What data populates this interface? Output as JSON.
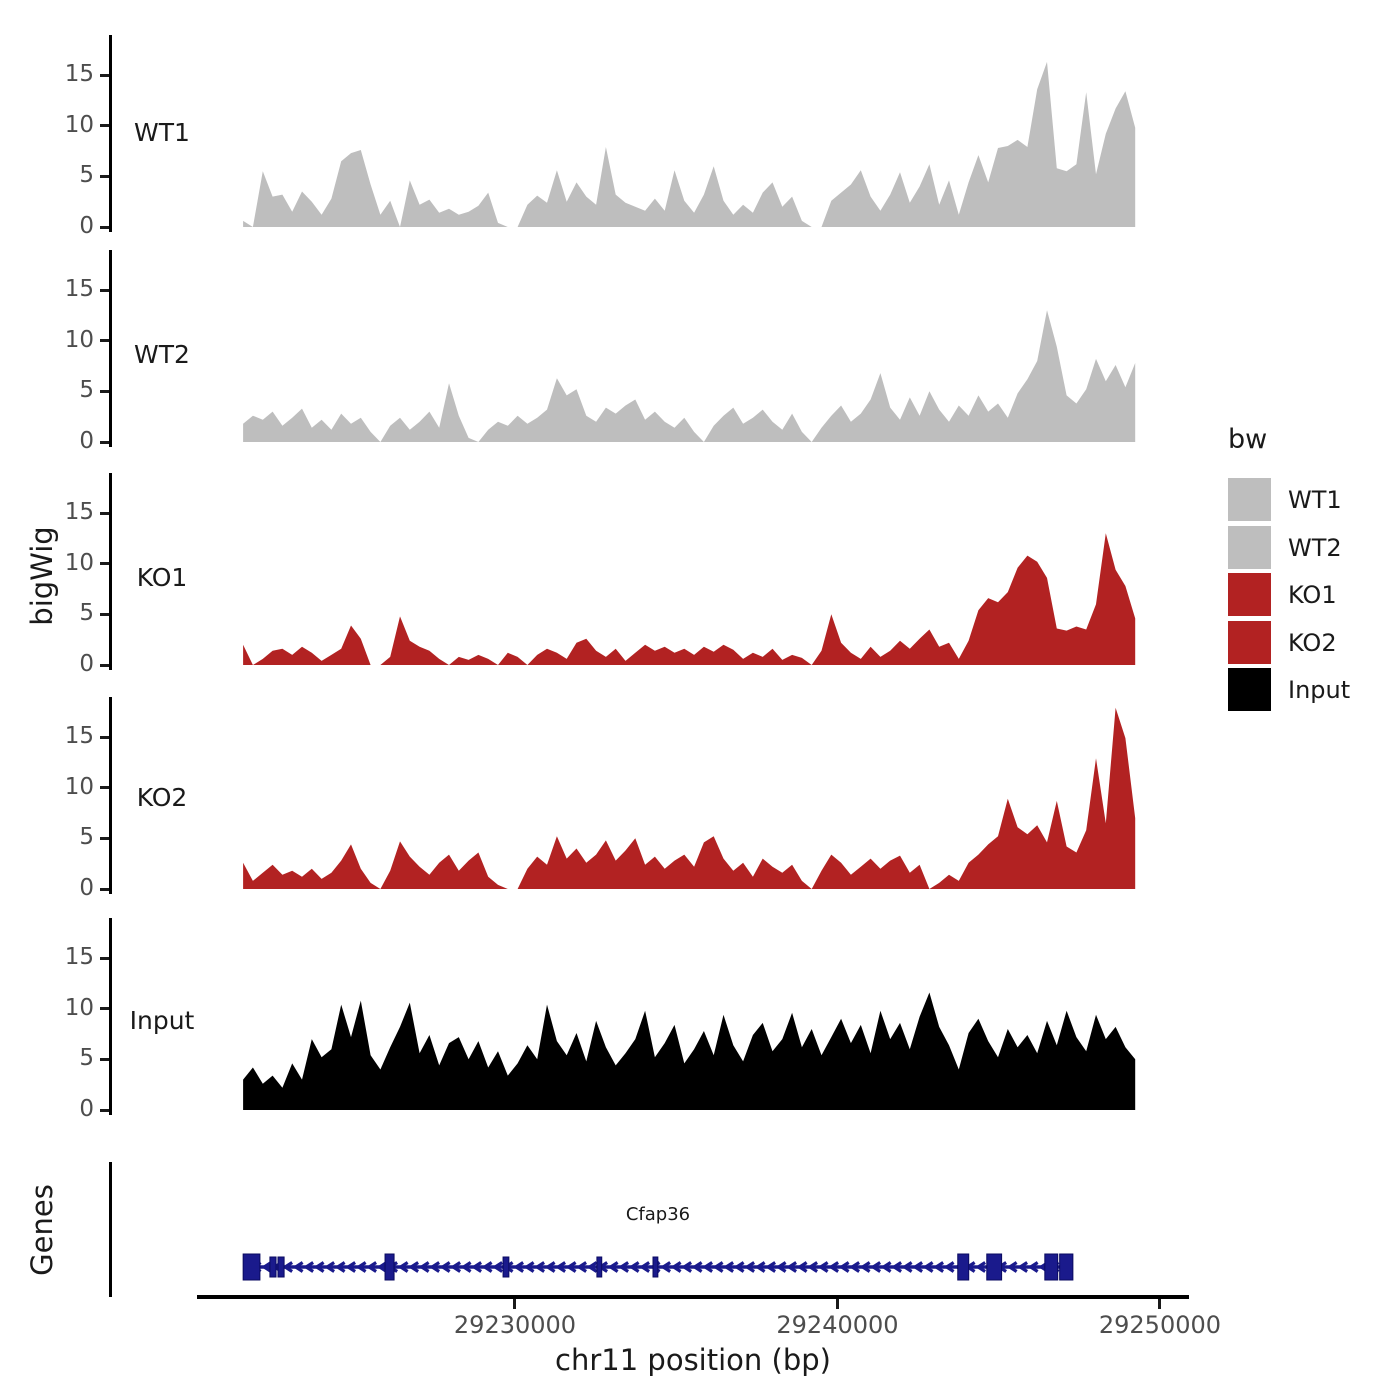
{
  "figure": {
    "ylab": "bigWig",
    "genes_label": "Genes",
    "xlab": "chr11 position (bp)"
  },
  "chart_data": {
    "type": "area",
    "title": "",
    "xlabel": "chr11 position (bp)",
    "ylabel": "bigWig",
    "grid": "off",
    "legend_position": "right",
    "x_domain_bp": [
      29220170,
      29250870
    ],
    "x_ticks": [
      {
        "bp": 29230000,
        "label": "29230000"
      },
      {
        "bp": 29240000,
        "label": "29240000"
      },
      {
        "bp": 29250000,
        "label": "29250000"
      }
    ],
    "y_ticks": [
      15,
      10,
      5,
      0
    ],
    "ylim": [
      0,
      19
    ],
    "sample_bp_start": 29221570,
    "sample_bp_step": 304,
    "legend": {
      "title": "bw",
      "items": [
        {
          "label": "WT1",
          "color": "#BEBEBE"
        },
        {
          "label": "WT2",
          "color": "#BEBEBE"
        },
        {
          "label": "KO1",
          "color": "#B22222"
        },
        {
          "label": "KO2",
          "color": "#B22222"
        },
        {
          "label": "Input",
          "color": "#000000"
        }
      ]
    },
    "tracks": [
      {
        "name": "WT1",
        "color": "#BEBEBE",
        "values": [
          0.6,
          0,
          5.5,
          3,
          3.2,
          1.5,
          3.5,
          2.5,
          1.2,
          2.8,
          6.5,
          7.3,
          7.6,
          4.2,
          1.2,
          2.6,
          0,
          4.6,
          2.2,
          2.7,
          1.4,
          1.8,
          1.2,
          1.5,
          2.1,
          3.4,
          0.4,
          0,
          0,
          2.2,
          3.1,
          2.4,
          5.6,
          2.5,
          4.4,
          3,
          2.2,
          7.9,
          3.2,
          2.4,
          2,
          1.6,
          2.8,
          1.6,
          5.6,
          2.6,
          1.4,
          3.2,
          6,
          2.6,
          1.2,
          2.2,
          1.4,
          3.4,
          4.4,
          2,
          3,
          0.6,
          0,
          0,
          2.6,
          3.4,
          4.2,
          5.6,
          3,
          1.6,
          3.2,
          5.4,
          2.4,
          4,
          6.2,
          2.2,
          4.6,
          1.2,
          4.4,
          7.1,
          4.4,
          7.8,
          8,
          8.6,
          7.9,
          13.6,
          16.3,
          5.8,
          5.5,
          6.2,
          13.3,
          5.2,
          9.2,
          11.7,
          13.4,
          9.8
        ]
      },
      {
        "name": "WT2",
        "color": "#BEBEBE",
        "values": [
          1.8,
          2.6,
          2.2,
          3,
          1.6,
          2.4,
          3.3,
          1.4,
          2.2,
          1.2,
          2.8,
          1.8,
          2.4,
          1,
          0,
          1.6,
          2.4,
          1.2,
          2,
          3,
          1.4,
          5.8,
          2.6,
          0.4,
          0,
          1.2,
          2,
          1.6,
          2.6,
          1.8,
          2.4,
          3.2,
          6.3,
          4.6,
          5.2,
          2.6,
          2,
          3.4,
          2.8,
          3.6,
          4.2,
          2.2,
          3,
          2,
          1.4,
          2.4,
          1,
          0,
          1.6,
          2.6,
          3.4,
          1.8,
          2.4,
          3.2,
          2,
          1.2,
          2.8,
          1,
          0,
          1.4,
          2.6,
          3.6,
          2,
          2.8,
          4.2,
          6.8,
          3.4,
          2.2,
          4.4,
          2.6,
          5,
          3.2,
          2,
          3.6,
          2.6,
          4.6,
          3,
          3.8,
          2.4,
          4.8,
          6.2,
          8,
          13,
          9.4,
          4.6,
          3.8,
          5.2,
          8.2,
          6,
          7.6,
          5.4,
          7.8
        ]
      },
      {
        "name": "KO1",
        "color": "#B22222",
        "values": [
          2,
          0,
          0.6,
          1.4,
          1.6,
          1,
          1.8,
          1.2,
          0.4,
          1,
          1.6,
          3.9,
          2.6,
          0,
          0,
          0.8,
          4.8,
          2.4,
          1.8,
          1.4,
          0.6,
          0,
          0.8,
          0.5,
          1,
          0.6,
          0,
          1.2,
          0.8,
          0,
          1,
          1.6,
          1.2,
          0.6,
          2.2,
          2.6,
          1.4,
          0.8,
          1.6,
          0.4,
          1.2,
          2,
          1.4,
          1.8,
          1.2,
          1.6,
          1,
          1.8,
          1.3,
          2,
          1.5,
          0.6,
          1.2,
          0.8,
          1.6,
          0.5,
          1,
          0.7,
          0,
          1.4,
          5,
          2.2,
          1.2,
          0.6,
          1.8,
          0.8,
          1.4,
          2.4,
          1.6,
          2.6,
          3.5,
          1.8,
          2.2,
          0.6,
          2.4,
          5.4,
          6.6,
          6.2,
          7.2,
          9.6,
          10.8,
          10.2,
          8.6,
          3.6,
          3.4,
          3.8,
          3.5,
          6,
          13,
          9.4,
          7.8,
          4.6
        ]
      },
      {
        "name": "KO2",
        "color": "#B22222",
        "values": [
          2.6,
          0.8,
          1.6,
          2.4,
          1.4,
          1.8,
          1.2,
          2,
          1,
          1.6,
          2.8,
          4.4,
          2,
          0.6,
          0,
          1.8,
          4.7,
          3.2,
          2.2,
          1.4,
          2.6,
          3.4,
          1.8,
          2.8,
          3.6,
          1.2,
          0.4,
          0,
          0,
          2,
          3.2,
          2.4,
          5.2,
          3,
          4,
          2.6,
          3.4,
          4.8,
          2.8,
          3.8,
          5,
          2.4,
          3.2,
          2,
          2.8,
          3.4,
          2.2,
          4.6,
          5.2,
          3,
          1.8,
          2.6,
          1.2,
          3,
          2.2,
          1.6,
          2.4,
          0.8,
          0,
          1.8,
          3.4,
          2.6,
          1.4,
          2.2,
          3,
          2,
          2.8,
          3.3,
          1.6,
          2.4,
          0,
          0.6,
          1.4,
          0.8,
          2.6,
          3.4,
          4.4,
          5.2,
          8.9,
          6.1,
          5.4,
          6.3,
          4.6,
          8.7,
          4.2,
          3.6,
          5.8,
          12.9,
          6.5,
          17.9,
          14.9,
          7
        ]
      },
      {
        "name": "Input",
        "color": "#000000",
        "values": [
          3,
          4.2,
          2.6,
          3.4,
          2.2,
          4.6,
          3,
          7,
          5.2,
          6,
          10.4,
          7.2,
          10.8,
          5.4,
          4,
          6.2,
          8.2,
          10.6,
          5.6,
          7.4,
          4.4,
          6.6,
          7.2,
          5,
          6.8,
          4.2,
          5.8,
          3.4,
          4.6,
          6.4,
          5,
          10.4,
          6.8,
          5.4,
          7.6,
          4.8,
          8.8,
          6.2,
          4.4,
          5.6,
          7,
          9.8,
          5.2,
          6.6,
          8.4,
          4.6,
          6,
          7.8,
          5.4,
          9.4,
          6.4,
          4.8,
          7.4,
          8.6,
          5.8,
          7,
          9.6,
          6.2,
          8,
          5.4,
          7.2,
          9,
          6.6,
          8.4,
          5.6,
          9.8,
          7,
          8.6,
          6,
          9.2,
          11.6,
          8.2,
          6.4,
          4,
          7.6,
          9,
          6.8,
          5.2,
          8,
          6.2,
          7.4,
          5.6,
          8.8,
          6.4,
          9.8,
          7.2,
          5.8,
          9.4,
          7,
          8.2,
          6.2,
          5
        ]
      }
    ],
    "gene_track": {
      "label": "Genes",
      "gene": {
        "name": "Cfap36",
        "strand": "-",
        "start_bp": 29221570,
        "end_bp": 29247300,
        "color": "#1A1A8C",
        "exons_bp": [
          [
            29221570,
            29222090
          ],
          [
            29222400,
            29222590
          ],
          [
            29222650,
            29222840
          ],
          [
            29225970,
            29226250
          ],
          [
            29229630,
            29229810
          ],
          [
            29232540,
            29232690
          ],
          [
            29234280,
            29234430
          ],
          [
            29243730,
            29244070
          ],
          [
            29244630,
            29245090
          ],
          [
            29246430,
            29246830
          ],
          [
            29246890,
            29247300
          ]
        ]
      }
    }
  }
}
